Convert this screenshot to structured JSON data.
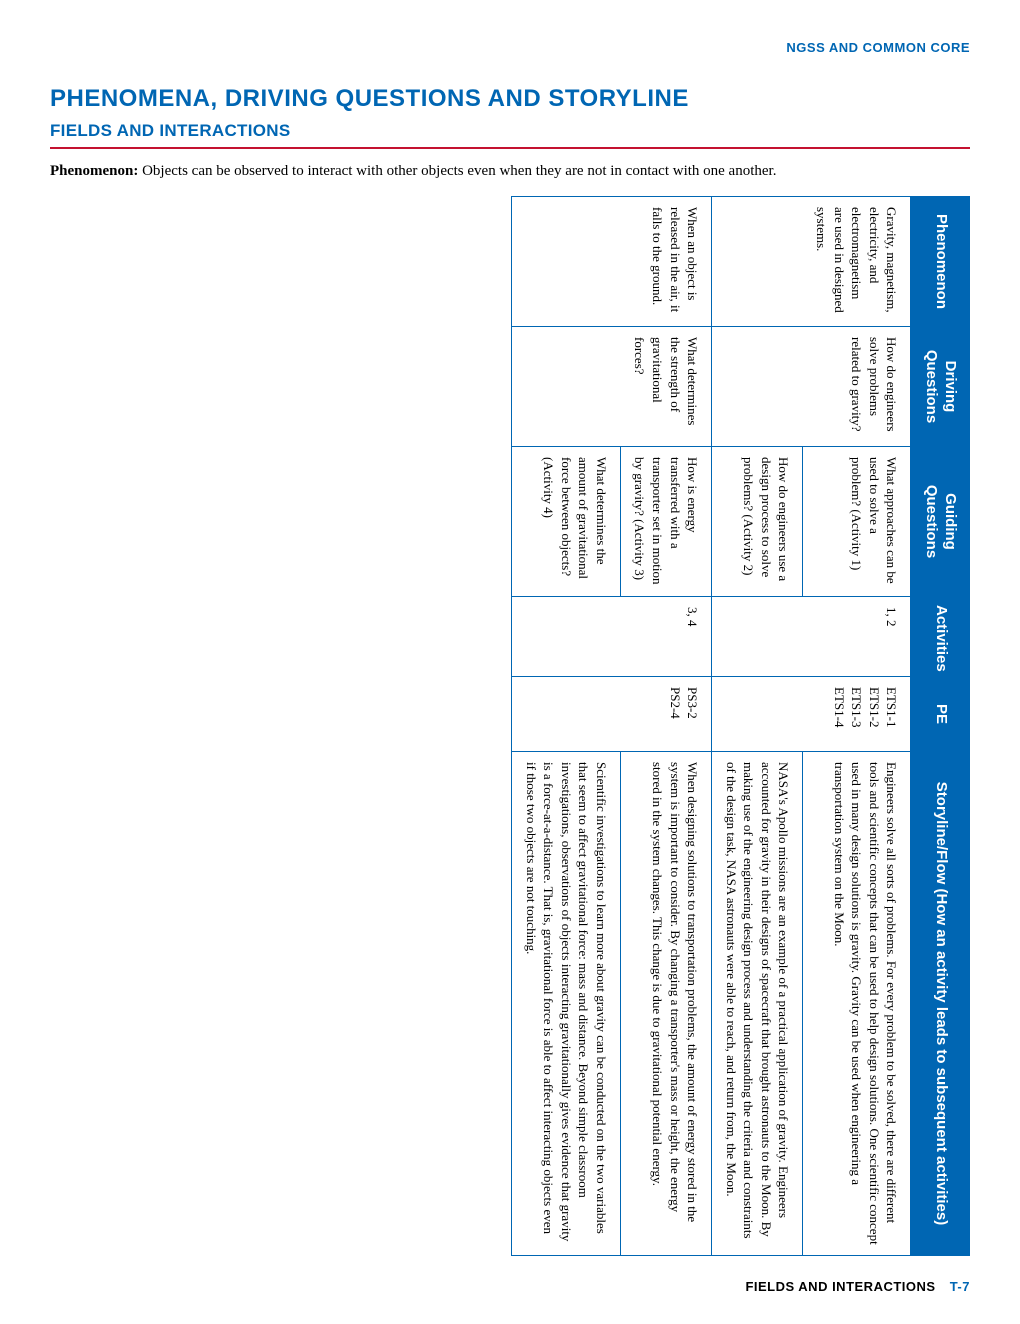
{
  "header_label": "NGSS AND COMMON CORE",
  "main_title": "PHENOMENA, DRIVING QUESTIONS AND STORYLINE",
  "subtitle": "FIELDS AND INTERACTIONS",
  "phenomenon_label": "Phenomenon:",
  "phenomenon_body": " Objects can be observed to interact with other objects even when they are not in contact with one another.",
  "columns": {
    "c1": "Phenomenon",
    "c2": "Driving Questions",
    "c3": "Guiding Questions",
    "c4": "Activities",
    "c5": "PE",
    "c6": "Storyline/Flow (How an activity leads to subsequent activities)"
  },
  "rows": [
    {
      "phenomenon": "Gravity, magnetism, electricity, and electromagnetism are used in designed systems.",
      "driving": "How do engineers solve problems related to gravity?",
      "guiding": "What approaches can be used to solve a problem? (Activity 1)",
      "activities": "1, 2",
      "pe": "ETS1-1\nETS1-2\nETS1-3\nETS1-4",
      "storyline": "Engineers solve all sorts of problems. For every problem to be solved, there are different tools and scientific concepts that can be used to help design solutions. One scientific concept used in many design solutions is gravity. Gravity can be used when engineering a transportation system on the Moon."
    },
    {
      "phenomenon": "",
      "driving": "",
      "guiding": "How do engineers use a design process to solve problems? (Activity 2)",
      "activities": "",
      "pe": "",
      "storyline": "NASA's Apollo missions are an example of a practical application of gravity. Engineers accounted for gravity in their designs of spacecraft that brought astronauts to the Moon. By making use of the engineering design process and understanding the criteria and constraints of the design task, NASA astronauts were able to reach, and return from, the Moon."
    },
    {
      "phenomenon": "When an object is released in the air, it falls to the ground.",
      "driving": "What determines the strength of gravitational forces?",
      "guiding": "How is energy transferred with a transporter set in motion by gravity? (Activity 3)",
      "activities": "3, 4",
      "pe": "PS3-2\nPS2-4",
      "storyline": "When designing solutions to transportation problems, the amount of energy stored in the system is important to consider. By changing a transporter's mass or height, the energy stored in the system changes. This change is due to gravitational potential energy."
    },
    {
      "phenomenon": "",
      "driving": "",
      "guiding": "What determines the amount of gravitational force between objects? (Activity 4)",
      "activities": "",
      "pe": "",
      "storyline": "Scientific investigations to learn more about gravity can be conducted on the two variables that seem to affect gravitational force: mass and distance. Beyond simple classroom investigations, observations of objects interacting gravitationally gives evidence that gravity is a force-at-a-distance. That is, gravitational force is able to affect interacting objects even if those two objects are not touching."
    }
  ],
  "footer_text": "FIELDS AND INTERACTIONS",
  "footer_page": "T-7",
  "colwidths": {
    "c1": "130px",
    "c2": "120px",
    "c3": "150px",
    "c4": "80px",
    "c5": "75px",
    "c6": "auto"
  }
}
